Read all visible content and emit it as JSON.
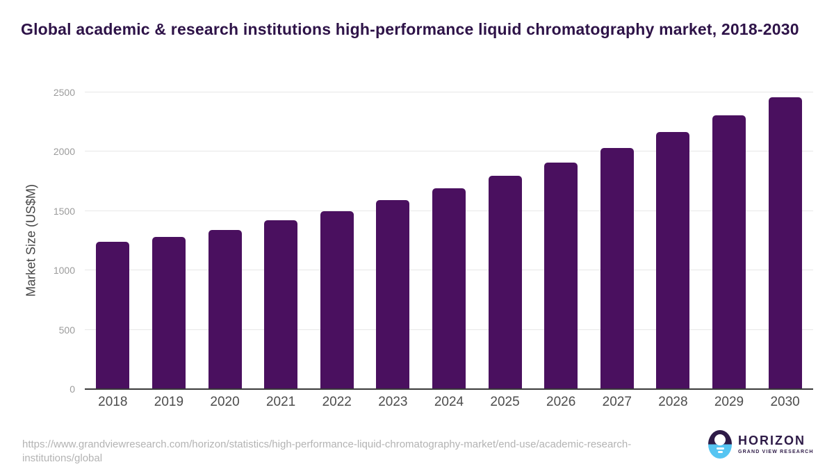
{
  "page": {
    "title": "Global academic & research institutions high-performance liquid chromatography market, 2018-2030"
  },
  "chart_data": {
    "type": "bar",
    "title": "Global academic & research institutions high-performance liquid chromatography market, 2018-2030",
    "categories": [
      "2018",
      "2019",
      "2020",
      "2021",
      "2022",
      "2023",
      "2024",
      "2025",
      "2026",
      "2027",
      "2028",
      "2029",
      "2030"
    ],
    "values": [
      1240,
      1280,
      1340,
      1420,
      1500,
      1590,
      1695,
      1800,
      1910,
      2030,
      2165,
      2305,
      2460
    ],
    "xlabel": "",
    "ylabel": "Market Size (US$M)",
    "ylim": [
      0,
      2500
    ],
    "yticks": [
      0,
      500,
      1000,
      1500,
      2000,
      2500
    ],
    "grid": true,
    "legend": false,
    "bar_corner_radius_px": 5
  },
  "footer": {
    "url_line1": "https://www.grandviewresearch.com/horizon/statistics/high-performance-liquid-chromatography-market/end-use/academic-research-",
    "url_line2": "institutions/global",
    "logo_text": "HORIZON",
    "logo_subtext": "GRAND VIEW RESEARCH"
  },
  "colors": {
    "title_text": "#2e1348",
    "bar": "#4a105f",
    "gridline": "#e7e7e7",
    "axis_line": "#3a3a3a",
    "y_tick_text": "#9b9b9b",
    "x_tick_text": "#4d4d4d",
    "y_axis_title_text": "#454545",
    "source_text": "#b3b3b3",
    "logo_dark": "#2e1b47",
    "logo_blue": "#56c5f2"
  }
}
